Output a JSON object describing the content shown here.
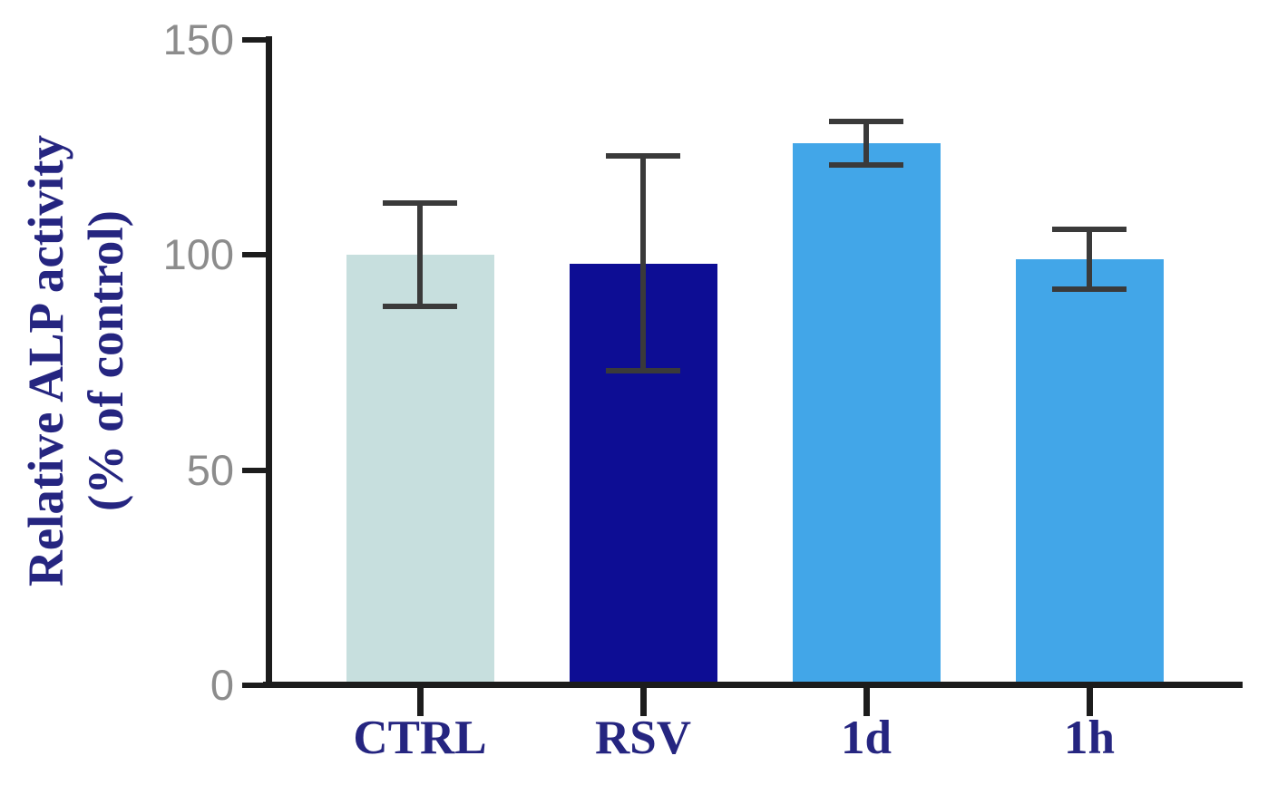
{
  "figure": {
    "background": "#ffffff"
  },
  "chart_data": {
    "type": "bar",
    "title": "",
    "categories": [
      "CTRL",
      "RSV",
      "1d",
      "1h"
    ],
    "values": [
      100,
      98,
      126,
      99
    ],
    "errors": [
      12,
      25,
      5,
      7
    ],
    "bar_colors": [
      "#c7dfde",
      "#0d0d94",
      "#42a6e8",
      "#42a6e8"
    ],
    "ylabel": "Relative ALP activity (% of control)",
    "ylabel_lines": [
      "Relative ALP activity",
      "(% of control)"
    ],
    "xlabel": "",
    "yticks": [
      "0",
      "50",
      "100",
      "150"
    ],
    "ytick_values": [
      0,
      50,
      100,
      150
    ],
    "ylim": [
      0,
      150
    ],
    "grid": false,
    "legend": null,
    "colors": {
      "axis": "#1c1c1c",
      "error_bar": "#3a3a3a",
      "ytick_label": "#8c8c8c",
      "category_label": "#252580",
      "ylabel": "#252580"
    }
  }
}
